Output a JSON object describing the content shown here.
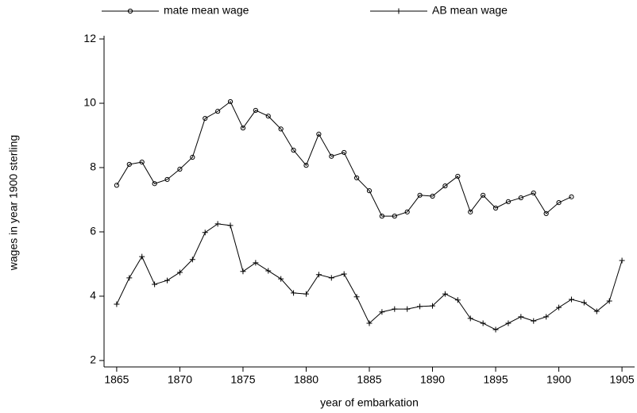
{
  "chart_data": {
    "type": "line",
    "x_label": "year of embarkation",
    "y_label": "wages in year 1900 sterling",
    "xlim": [
      1864,
      1906
    ],
    "ylim": [
      1.8,
      12.1
    ],
    "xticks": [
      1865,
      1870,
      1875,
      1880,
      1885,
      1890,
      1895,
      1900,
      1905
    ],
    "yticks": [
      2,
      4,
      6,
      8,
      10,
      12
    ],
    "grid": false,
    "legend": "top",
    "series": [
      {
        "name": "mate mean wage",
        "color": "#000000",
        "marker": "circle",
        "x": [
          1865,
          1866,
          1867,
          1868,
          1869,
          1870,
          1871,
          1872,
          1873,
          1874,
          1875,
          1876,
          1877,
          1878,
          1879,
          1880,
          1881,
          1882,
          1883,
          1884,
          1885,
          1886,
          1887,
          1888,
          1889,
          1890,
          1891,
          1892,
          1893,
          1894,
          1895,
          1896,
          1897,
          1898,
          1899,
          1900,
          1901
        ],
        "values": [
          7.45,
          8.1,
          8.17,
          7.5,
          7.63,
          7.95,
          8.32,
          9.53,
          9.75,
          10.05,
          9.23,
          9.78,
          9.6,
          9.2,
          8.54,
          8.07,
          9.04,
          8.35,
          8.47,
          7.68,
          7.28,
          6.49,
          6.49,
          6.62,
          7.14,
          7.11,
          7.43,
          7.73,
          6.62,
          7.14,
          6.74,
          6.94,
          7.06,
          7.21,
          6.57,
          6.91,
          7.09
        ]
      },
      {
        "name": "AB mean wage",
        "color": "#000000",
        "marker": "plus",
        "x": [
          1865,
          1866,
          1867,
          1868,
          1869,
          1870,
          1871,
          1872,
          1873,
          1874,
          1875,
          1876,
          1877,
          1878,
          1879,
          1880,
          1881,
          1882,
          1883,
          1884,
          1885,
          1886,
          1887,
          1888,
          1889,
          1890,
          1891,
          1892,
          1893,
          1894,
          1895,
          1896,
          1897,
          1898,
          1899,
          1900,
          1901,
          1902,
          1903,
          1904,
          1905
        ],
        "values": [
          3.75,
          4.57,
          5.23,
          4.37,
          4.49,
          4.74,
          5.14,
          5.98,
          6.25,
          6.2,
          4.77,
          5.04,
          4.79,
          4.54,
          4.1,
          4.07,
          4.67,
          4.57,
          4.69,
          3.98,
          3.16,
          3.51,
          3.6,
          3.6,
          3.68,
          3.7,
          4.07,
          3.88,
          3.31,
          3.16,
          2.96,
          3.16,
          3.36,
          3.23,
          3.36,
          3.65,
          3.9,
          3.8,
          3.53,
          3.85,
          5.11
        ]
      }
    ]
  }
}
